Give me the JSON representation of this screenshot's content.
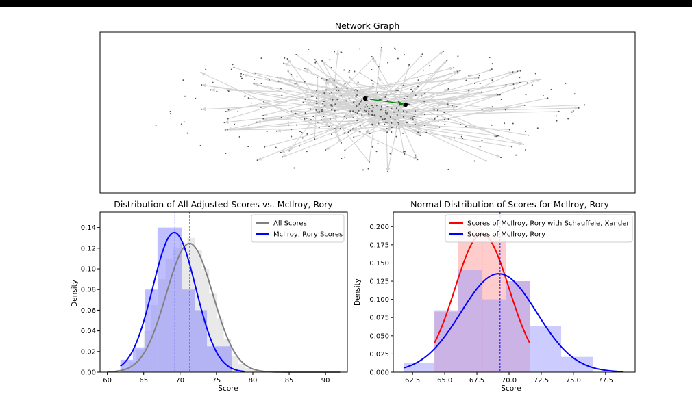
{
  "figure": {
    "colors": {
      "bar_black": "#000000",
      "edge": "#d3d3d3",
      "node": "#555555",
      "hub": "#000000",
      "path": "#008000"
    }
  },
  "chart_data": [
    {
      "type": "network",
      "title": "Network Graph",
      "highlighted_edge_color": "green",
      "node_count_approx": 400
    },
    {
      "type": "histogram",
      "title": "Distribution of All Adjusted Scores vs. McIlroy, Rory",
      "xlabel": "Score",
      "ylabel": "Density",
      "xlim": [
        59,
        93
      ],
      "ylim": [
        0,
        0.155
      ],
      "xticks": [
        60,
        65,
        70,
        75,
        80,
        85,
        90
      ],
      "yticks": [
        0.0,
        0.02,
        0.04,
        0.06,
        0.08,
        0.1,
        0.12,
        0.14
      ],
      "yticklabels": [
        "0.00",
        "0.02",
        "0.04",
        "0.06",
        "0.08",
        "0.10",
        "0.12",
        "0.14"
      ],
      "legend_position": "upper right",
      "series": [
        {
          "name": "All Scores",
          "color": "#808080",
          "hist_color": "#d3d3d3",
          "bin_edges": [
            62,
            63,
            64,
            65,
            66,
            67,
            68,
            69,
            70,
            71,
            72,
            73,
            74,
            75,
            76,
            77,
            78,
            79,
            80,
            81,
            82,
            83
          ],
          "hist_density": [
            0.004,
            0.01,
            0.022,
            0.04,
            0.065,
            0.09,
            0.11,
            0.12,
            0.125,
            0.13,
            0.118,
            0.1,
            0.076,
            0.052,
            0.032,
            0.016,
            0.008,
            0.004,
            0.002,
            0.001,
            0.0005
          ],
          "normal_mean": 71.3,
          "normal_std": 3.2,
          "curve_x_range": [
            60,
            92
          ],
          "mean_line": 71.3
        },
        {
          "name": "McIlroy, Rory Scores",
          "color": "#0000ff",
          "hist_color": "#8080ff",
          "bin_edges": [
            61.8,
            63.5,
            65.2,
            66.9,
            68.6,
            70.3,
            72.0,
            73.7,
            75.4,
            77.1
          ],
          "hist_density": [
            0.012,
            0.024,
            0.08,
            0.14,
            0.14,
            0.08,
            0.06,
            0.025,
            0.025
          ],
          "normal_mean": 69.2,
          "normal_std": 2.95,
          "curve_x_range": [
            61.8,
            78.9
          ],
          "mean_line": 69.3
        }
      ]
    },
    {
      "type": "histogram",
      "title": "Normal Distribution of Scores for McIlroy, Rory",
      "xlabel": "Score",
      "ylabel": "Density",
      "xlim": [
        61.0,
        79.8
      ],
      "ylim": [
        0,
        0.22
      ],
      "xticks": [
        62.5,
        65.0,
        67.5,
        70.0,
        72.5,
        75.0,
        77.5
      ],
      "xticklabels": [
        "62.5",
        "65.0",
        "67.5",
        "70.0",
        "72.5",
        "75.0",
        "77.5"
      ],
      "yticks": [
        0.0,
        0.025,
        0.05,
        0.075,
        0.1,
        0.125,
        0.15,
        0.175,
        0.2
      ],
      "yticklabels": [
        "0.000",
        "0.025",
        "0.050",
        "0.075",
        "0.100",
        "0.125",
        "0.150",
        "0.175",
        "0.200"
      ],
      "legend_position": "upper right",
      "series": [
        {
          "name": "Scores of McIlroy, Rory with Schauffele, Xander",
          "color": "#ff0000",
          "hist_color": "#ff9999",
          "bin_edges": [
            64.2,
            66.05,
            67.9,
            69.75,
            71.6
          ],
          "hist_density": [
            0.083,
            0.208,
            0.187,
            0.125
          ],
          "normal_mean": 67.9,
          "normal_std": 2.1,
          "curve_x_range": [
            64.2,
            71.6
          ],
          "mean_line": 67.9
        },
        {
          "name": "Scores of McIlroy, Rory",
          "color": "#0000ff",
          "hist_color": "#9999ff",
          "bin_edges": [
            61.8,
            64.2,
            66.05,
            67.9,
            69.75,
            71.6,
            74.05,
            76.5
          ],
          "hist_density": [
            0.013,
            0.085,
            0.14,
            0.1,
            0.125,
            0.063,
            0.021
          ],
          "normal_mean": 69.2,
          "normal_std": 2.95,
          "curve_x_range": [
            61.8,
            78.9
          ],
          "mean_line": 69.3
        }
      ]
    }
  ]
}
